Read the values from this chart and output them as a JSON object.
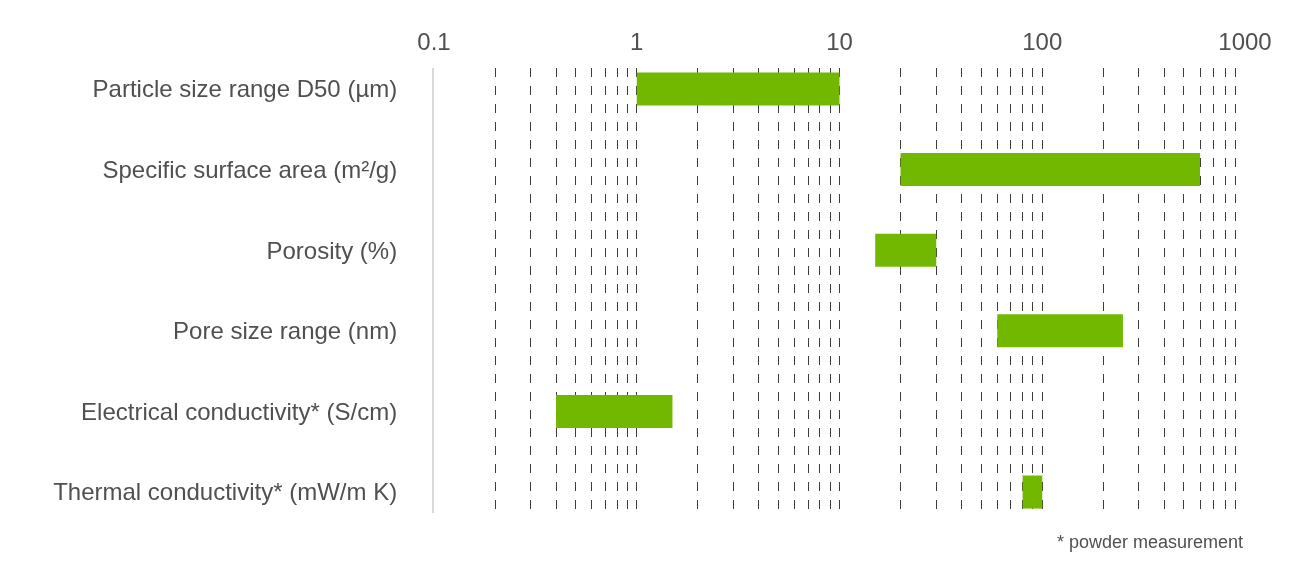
{
  "chart_data": {
    "type": "bar",
    "orientation": "horizontal",
    "log": "x",
    "categories": [
      "Particle size range D50 (µm)",
      "Specific surface area (m²/g)",
      "Porosity (%)",
      "Pore size range (nm)",
      "Electrical conductivity* (S/cm)",
      "Thermal conductivity* (mW/m K)"
    ],
    "base": [
      1,
      20,
      15,
      60,
      0.4,
      80
    ],
    "values": [
      9,
      580,
      15,
      190,
      1.1,
      20
    ],
    "color": "#73b800",
    "xlim": [
      0.1,
      1000
    ],
    "xticks": [
      0.1,
      {
        "value": 0.2,
        "label": null
      },
      {
        "value": 0.3,
        "label": null
      },
      {
        "value": 0.4,
        "label": null
      },
      {
        "value": 0.5,
        "label": null
      },
      {
        "value": 0.6,
        "label": null
      },
      {
        "value": 0.7,
        "label": null
      },
      {
        "value": 0.8,
        "label": null
      },
      {
        "value": 0.9,
        "label": null
      },
      1,
      {
        "value": 2,
        "label": null
      },
      {
        "value": 3,
        "label": null
      },
      {
        "value": 4,
        "label": null
      },
      {
        "value": 5,
        "label": null
      },
      {
        "value": 6,
        "label": null
      },
      {
        "value": 7,
        "label": null
      },
      {
        "value": 8,
        "label": null
      },
      {
        "value": 9,
        "label": null
      },
      10,
      {
        "value": 20,
        "label": null
      },
      {
        "value": 30,
        "label": null
      },
      {
        "value": 40,
        "label": null
      },
      {
        "value": 50,
        "label": null
      },
      {
        "value": 60,
        "label": null
      },
      {
        "value": 70,
        "label": null
      },
      {
        "value": 80,
        "label": null
      },
      {
        "value": 90,
        "label": null
      },
      100,
      {
        "value": 200,
        "label": null
      },
      {
        "value": 300,
        "label": null
      },
      {
        "value": 400,
        "label": null
      },
      {
        "value": 500,
        "label": null
      },
      {
        "value": 600,
        "label": null
      },
      {
        "value": 700,
        "label": null
      },
      {
        "value": 800,
        "label": null
      },
      {
        "value": 900,
        "label": null
      },
      1000
    ],
    "grid": "x",
    "line_style": "dashed",
    "annotations": [
      "* powder measurement"
    ]
  }
}
